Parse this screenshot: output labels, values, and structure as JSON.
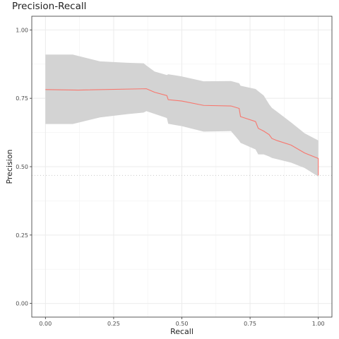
{
  "chart_data": {
    "type": "line",
    "title": "Precision-Recall",
    "xlabel": "Recall",
    "ylabel": "Precision",
    "xlim": [
      0.0,
      1.0
    ],
    "ylim": [
      0.0,
      1.0
    ],
    "x_ticks": [
      "0.00",
      "0.25",
      "0.50",
      "0.75",
      "1.00"
    ],
    "y_ticks": [
      "0.00",
      "0.25",
      "0.50",
      "0.75",
      "1.00"
    ],
    "grid": true,
    "baseline": {
      "y": 0.468,
      "style": "dotted"
    },
    "series": [
      {
        "color": "#F8766D",
        "x": [
          0.0,
          0.12,
          0.37,
          0.4,
          0.445,
          0.45,
          0.5,
          0.58,
          0.68,
          0.71,
          0.715,
          0.77,
          0.78,
          0.8,
          0.82,
          0.83,
          0.85,
          0.9,
          0.95,
          1.0,
          1.0
        ],
        "y": [
          0.782,
          0.78,
          0.785,
          0.772,
          0.76,
          0.745,
          0.74,
          0.724,
          0.722,
          0.713,
          0.683,
          0.665,
          0.64,
          0.63,
          0.617,
          0.603,
          0.595,
          0.579,
          0.55,
          0.53,
          0.468
        ]
      }
    ],
    "confidence_band": {
      "color": "#d3d3d3",
      "x": [
        0.0,
        0.1,
        0.2,
        0.3,
        0.36,
        0.37,
        0.4,
        0.445,
        0.45,
        0.5,
        0.58,
        0.68,
        0.71,
        0.715,
        0.77,
        0.78,
        0.8,
        0.82,
        0.83,
        0.85,
        0.9,
        0.95,
        1.0
      ],
      "y_upper": [
        0.91,
        0.91,
        0.885,
        0.88,
        0.878,
        0.87,
        0.848,
        0.835,
        0.838,
        0.83,
        0.812,
        0.813,
        0.805,
        0.796,
        0.784,
        0.776,
        0.76,
        0.728,
        0.715,
        0.7,
        0.662,
        0.622,
        0.596
      ],
      "y_lower": [
        0.656,
        0.656,
        0.68,
        0.692,
        0.698,
        0.703,
        0.693,
        0.678,
        0.657,
        0.648,
        0.628,
        0.63,
        0.595,
        0.587,
        0.563,
        0.545,
        0.545,
        0.537,
        0.532,
        0.527,
        0.515,
        0.495,
        0.464
      ]
    }
  }
}
